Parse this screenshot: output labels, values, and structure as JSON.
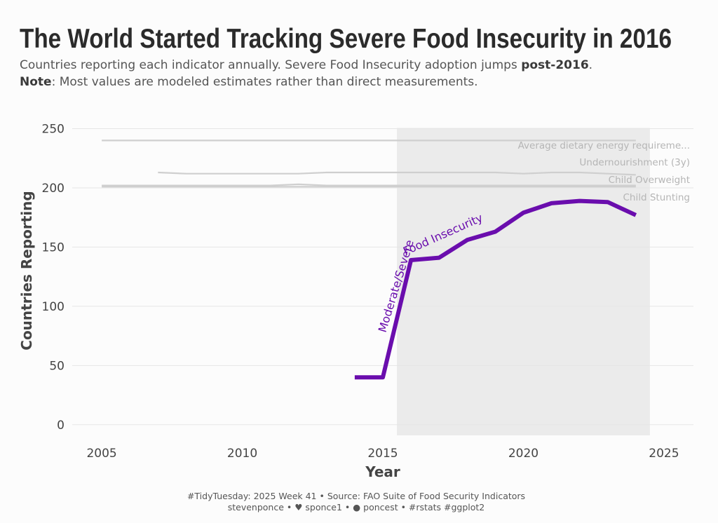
{
  "title": "The World Started Tracking Severe Food Insecurity in 2016",
  "subtitle": {
    "line1_text": "Countries reporting each indicator annually. Severe Food Insecurity adoption jumps ",
    "line1_bold": "post-2016",
    "line1_end": ".",
    "line2_bold": "Note",
    "line2_text": ": Most values are modeled estimates rather than direct measurements."
  },
  "caption": {
    "line1": "#TidyTuesday: 2025 Week 41 • Source: FAO Suite of Food Security Indicators",
    "line2": "stevenponce • ♥ sponce1 • ● poncest • #rstats #ggplot2"
  },
  "colors": {
    "highlight": "#6a0dad",
    "reference": "#cfcfcf",
    "shade": "#ebebeb",
    "grid": "#e6e6e6"
  },
  "chart_data": {
    "type": "line",
    "title": "The World Started Tracking Severe Food Insecurity in 2016",
    "xlabel": "Year",
    "ylabel": "Countries Reporting",
    "xlim": [
      2003.95,
      2026.05
    ],
    "ylim": [
      -9,
      258
    ],
    "x_ticks": [
      2005,
      2010,
      2015,
      2020,
      2025
    ],
    "y_ticks": [
      0,
      50,
      100,
      150,
      200,
      250
    ],
    "grid": "horizontal",
    "shaded_period": [
      2015.5,
      2024.5
    ],
    "series": [
      {
        "name": "Moderate/Severe Food Insecurity",
        "highlight": true,
        "x": [
          2014,
          2015,
          2016,
          2017,
          2018,
          2019,
          2020,
          2021,
          2022,
          2023,
          2024
        ],
        "values": [
          40,
          40,
          139,
          141,
          156,
          163,
          179,
          187,
          189,
          188,
          177
        ]
      },
      {
        "name": "Average dietary energy requireme...",
        "highlight": false,
        "x": [
          2005,
          2006,
          2007,
          2008,
          2009,
          2010,
          2011,
          2012,
          2013,
          2014,
          2015,
          2016,
          2017,
          2018,
          2019,
          2020,
          2021,
          2022,
          2023,
          2024
        ],
        "values": [
          240,
          240,
          240,
          240,
          240,
          240,
          240,
          240,
          240,
          240,
          240,
          240,
          240,
          240,
          240,
          240,
          240,
          240,
          240,
          240
        ]
      },
      {
        "name": "Undernourishment (3y)",
        "highlight": false,
        "x": [
          2007,
          2008,
          2009,
          2010,
          2011,
          2012,
          2013,
          2014,
          2015,
          2016,
          2017,
          2018,
          2019,
          2020,
          2021,
          2022,
          2023,
          2024
        ],
        "values": [
          213,
          212,
          212,
          212,
          212,
          212,
          213,
          213,
          213,
          213,
          213,
          213,
          213,
          212,
          213,
          213,
          212,
          211
        ]
      },
      {
        "name": "Child Overweight",
        "highlight": false,
        "x": [
          2005,
          2006,
          2007,
          2008,
          2009,
          2010,
          2011,
          2012,
          2013,
          2014,
          2015,
          2016,
          2017,
          2018,
          2019,
          2020,
          2021,
          2022,
          2023,
          2024
        ],
        "values": [
          202,
          202,
          202,
          202,
          202,
          202,
          202,
          203,
          202,
          202,
          202,
          202,
          202,
          202,
          202,
          202,
          202,
          202,
          202,
          202
        ]
      },
      {
        "name": "Child Stunting",
        "highlight": false,
        "x": [
          2005,
          2006,
          2007,
          2008,
          2009,
          2010,
          2011,
          2012,
          2013,
          2014,
          2015,
          2016,
          2017,
          2018,
          2019,
          2020,
          2021,
          2022,
          2023,
          2024
        ],
        "values": [
          201,
          201,
          201,
          201,
          201,
          201,
          201,
          201,
          201,
          201,
          201,
          201,
          201,
          201,
          201,
          201,
          201,
          201,
          201,
          201
        ]
      }
    ],
    "annotations": [
      {
        "text": "Average dietary energy requireme...",
        "series": "Average dietary energy requireme..."
      },
      {
        "text": "Undernourishment (3y)",
        "series": "Undernourishment (3y)"
      },
      {
        "text": "Child Overweight",
        "series": "Child Overweight"
      },
      {
        "text": "Child Stunting",
        "series": "Child Stunting"
      },
      {
        "text": "Moderate/Severe Food Insecurity",
        "series": "Moderate/Severe Food Insecurity"
      }
    ]
  }
}
